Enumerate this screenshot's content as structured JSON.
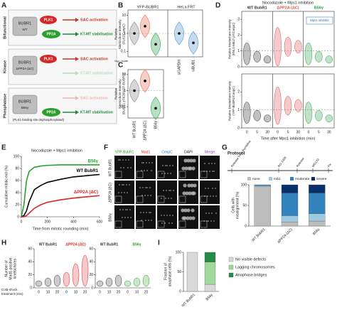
{
  "panel_labels": [
    "A",
    "B",
    "C",
    "D",
    "E",
    "F",
    "G",
    "H",
    "I"
  ],
  "A": {
    "rows": [
      {
        "category": "Bifunctional",
        "construct": [
          "BUBR1",
          "WT"
        ],
        "outcomes": [
          "SAC activation",
          "KT-MT stabilisation"
        ]
      },
      {
        "category": "Kinase",
        "construct": [
          "BUBR1",
          "ΔPP2A (ΔC)"
        ],
        "outcomes": [
          "SAC activation",
          "KT-MT stabilisation"
        ]
      },
      {
        "category": "Phosphatase",
        "construct": [
          "BUBR1",
          "B56γ"
        ],
        "outcomes": [
          "SAC activation",
          "KT-MT stabilisation"
        ],
        "note": "(PLK1-binding site dephosphorylated)"
      }
    ],
    "kinase": "PLK1",
    "phosphatase": "PP2A"
  },
  "B": {
    "type": "violin",
    "header": "YFP-BUBR1",
    "header2": "HeLa FRT",
    "scale_note": "log₁₀ scale",
    "ylabel": [
      "Relative",
      "kinetochore intensity",
      "(PLK1/CenpC)"
    ],
    "categories": [
      null,
      null,
      null,
      "siGAPDH",
      "siBUB1"
    ],
    "values": [
      1,
      2.5,
      0.25,
      1,
      0.3
    ],
    "colors": [
      "#8c8c8c",
      "#e8735a",
      "#3aa655",
      "#5b9bd5",
      "#5b9bd5"
    ],
    "log": true,
    "ylim": [
      0.05,
      20
    ],
    "yticks": [
      0.1,
      1,
      10
    ]
  },
  "C": {
    "type": "violin",
    "ylabel": [
      "Relative",
      "kinetochore intensity",
      "(BUBR1 pT620/YFP-BUBR1)"
    ],
    "categories": [
      "WT BubR1",
      "ΔPP2A (ΔC)",
      "B56γ"
    ],
    "values": [
      1,
      4,
      0.08
    ],
    "colors": [
      "#8c8c8c",
      "#e8735a",
      "#3aa655"
    ],
    "log": true,
    "ylim": [
      0.02,
      20
    ],
    "yticks": [
      0.1,
      1,
      10
    ]
  },
  "D": {
    "title": "Nocodazole + Mps1 inhibition",
    "groups": [
      "WT BubR1",
      "ΔPP2A (ΔC)",
      "B56γ"
    ],
    "group_colors": [
      "#333333",
      "#d9534f",
      "#2e9e4a"
    ],
    "time_categories": [
      "0",
      "5",
      "30"
    ],
    "inset": "Mps1 inhibitor",
    "ylabel_top": [
      "Relative kinetochore intensity",
      "(KNL1-MELT pT/CenpC)"
    ],
    "ylabel_bottom": [
      "Relative kinetochore intensity",
      "(YFP-BUBR1/CenpC)"
    ],
    "xlabel": "Time after Mps1 inhibition (min)",
    "ylim_top": [
      0,
      3.5
    ],
    "yticks_top": [
      0,
      1,
      2,
      3
    ],
    "ylim_bottom": [
      0,
      3
    ],
    "yticks_bottom": [
      0,
      1,
      2
    ]
  },
  "E": {
    "type": "line",
    "title": "Nocodazole + Mps1 inhibition",
    "ylabel": [
      "Cumulative mitotic exit (%)"
    ],
    "xlabel": "Time from mitotic rounding (min)",
    "x": [
      0,
      20,
      40,
      60,
      100,
      150,
      200,
      300,
      400,
      500,
      600
    ],
    "series": [
      {
        "name": "B56γ",
        "color": "#2ca02c",
        "values": [
          0,
          20,
          60,
          75,
          82,
          84,
          85,
          86,
          86,
          86,
          86
        ]
      },
      {
        "name": "WT BubR1",
        "color": "#000000",
        "values": [
          0,
          2,
          10,
          25,
          45,
          52,
          57,
          62,
          66,
          68,
          70
        ]
      },
      {
        "name": "ΔPP2A (ΔC)",
        "color": "#d62728",
        "values": [
          0,
          0,
          2,
          6,
          14,
          20,
          24,
          28,
          31,
          33,
          35
        ]
      }
    ],
    "xlim": [
      0,
      600
    ],
    "xticks": [
      0,
      200,
      400,
      600
    ],
    "ylim": [
      0,
      100
    ],
    "yticks": [
      0,
      20,
      40,
      60,
      80,
      100
    ]
  },
  "F": {
    "channels": [
      "YFP-BubR1",
      "Mad1",
      "CenpC",
      "DAPI",
      "Merge"
    ],
    "rows": [
      "WT BubR1",
      "ΔPP2A (ΔC)",
      "B56γ"
    ]
  },
  "G": {
    "protocol": {
      "title": "Protocol",
      "steps": [
        "Release from thymidine",
        "RO-3306",
        "Release",
        "MG132",
        "Fix"
      ]
    },
    "type": "stacked_bar",
    "ylabel": [
      "Cells with",
      "misalignment (%)"
    ],
    "categories": [
      "WT BubR1",
      "ΔPP2A (ΔC)",
      "B56γ"
    ],
    "series": [
      {
        "name": "none",
        "color": "#bdbdbd",
        "values": [
          96,
          10,
          12
        ]
      },
      {
        "name": "mild",
        "color": "#9ecae1",
        "values": [
          2,
          15,
          18
        ]
      },
      {
        "name": "moderate",
        "color": "#3182bd",
        "values": [
          2,
          55,
          50
        ]
      },
      {
        "name": "severe",
        "color": "#08306b",
        "values": [
          0,
          20,
          20
        ]
      }
    ],
    "ylim": [
      0,
      100
    ],
    "yticks": [
      0,
      50,
      100
    ]
  },
  "H": {
    "panels": [
      [
        "WT BubR1",
        "ΔPP2A (ΔC)"
      ],
      [
        "WT BubR1",
        "B56γ"
      ]
    ],
    "ylabel": [
      "Number of",
      "Mad1-positive",
      "kinetochores"
    ],
    "xlabel": [
      "Cold-shock",
      "treatment (min)"
    ],
    "time_categories": [
      "0",
      "10",
      "20"
    ],
    "ylim": [
      0,
      60
    ],
    "yticks": [
      0,
      20,
      40,
      60
    ]
  },
  "I": {
    "type": "stacked_bar",
    "ylabel": [
      "Fraction of",
      "anaphase cells (%)"
    ],
    "categories": [
      "WT BubR1",
      "B56γ"
    ],
    "series": [
      {
        "name": "No visible defects",
        "color": "#d9d9d9",
        "values": [
          100,
          18
        ]
      },
      {
        "name": "Lagging chromosomes",
        "color": "#a1d99b",
        "values": [
          0,
          57
        ]
      },
      {
        "name": "Anaphase bridges",
        "color": "#238b45",
        "values": [
          0,
          25
        ]
      }
    ],
    "ylim": [
      0,
      100
    ],
    "yticks": [
      0,
      50,
      100
    ]
  }
}
